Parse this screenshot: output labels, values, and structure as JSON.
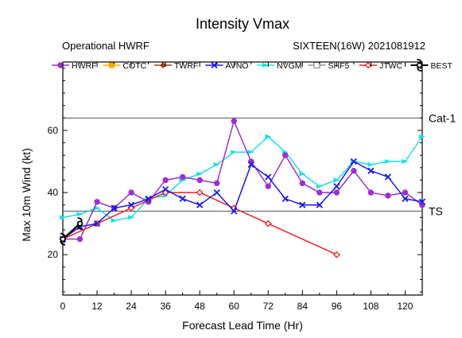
{
  "chart_data": {
    "type": "line",
    "title": "Intensity Vmax",
    "subtitle_left": "Operational HWRF",
    "subtitle_right": "SIXTEEN(16W) 2021081912",
    "xlabel": "Forecast Lead Time (Hr)",
    "ylabel": "Max 10m Wind (kt)",
    "xlim": [
      0,
      126
    ],
    "ylim": [
      7,
      82
    ],
    "xticks": [
      0,
      12,
      24,
      36,
      48,
      60,
      72,
      84,
      96,
      108,
      120
    ],
    "xtick_labels": [
      "0",
      "12",
      "24",
      "36",
      "48",
      "60",
      "72",
      "84",
      "96",
      "108",
      "120"
    ],
    "yticks": [
      20,
      40,
      60
    ],
    "ytick_labels": [
      "20",
      "40",
      "60"
    ],
    "thresholds": [
      {
        "label": "Cat-1",
        "value": 64
      },
      {
        "label": "TS",
        "value": 34
      }
    ],
    "legend_position": "top",
    "series": [
      {
        "name": "HWRF",
        "color": "#9b30d0",
        "marker": "circle",
        "x": [
          0,
          6,
          12,
          18,
          24,
          30,
          36,
          42,
          48,
          54,
          60,
          66,
          72,
          78,
          84,
          90,
          96,
          102,
          108,
          114,
          120,
          126
        ],
        "y": [
          25,
          25,
          37,
          35,
          40,
          37,
          44,
          45,
          44,
          43,
          63,
          50,
          42,
          52,
          43,
          40,
          40,
          47,
          40,
          39,
          40,
          36
        ]
      },
      {
        "name": "COTC",
        "color": "#ffa500",
        "marker": "square",
        "x": [],
        "y": []
      },
      {
        "name": "TWRF",
        "color": "#8b4513",
        "marker": "diamond",
        "x": [],
        "y": []
      },
      {
        "name": "AVNO",
        "color": "#1a1ae6",
        "marker": "x",
        "x": [
          0,
          6,
          12,
          18,
          24,
          30,
          36,
          42,
          48,
          54,
          60,
          66,
          72,
          78,
          84,
          90,
          96,
          102,
          108,
          114,
          120,
          126
        ],
        "y": [
          25,
          29,
          30,
          35,
          36,
          38,
          41,
          38,
          36,
          40,
          34,
          49,
          45,
          38,
          36,
          36,
          42,
          50,
          47,
          45,
          38,
          37
        ]
      },
      {
        "name": "NVGM",
        "color": "#1de0e0",
        "marker": "triangle",
        "x": [
          0,
          6,
          12,
          18,
          24,
          30,
          36,
          42,
          48,
          54,
          60,
          66,
          72,
          78,
          84,
          90,
          96,
          102,
          108,
          114,
          120,
          126
        ],
        "y": [
          32,
          33,
          35,
          31,
          32,
          38,
          39,
          44,
          46,
          49,
          53,
          53,
          58,
          53,
          46,
          42,
          44,
          50,
          49,
          50,
          50,
          58
        ]
      },
      {
        "name": "SHF5",
        "color": "#909090",
        "marker": "square-open",
        "x": [],
        "y": []
      },
      {
        "name": "JTWC",
        "color": "#ee2020",
        "marker": "diamond-open",
        "x": [
          0,
          12,
          24,
          36,
          48,
          60,
          72,
          96
        ],
        "y": [
          25,
          30,
          35,
          40,
          40,
          35,
          30,
          20
        ]
      },
      {
        "name": "BEST",
        "color": "#000000",
        "marker": "hurricane",
        "x": [
          0,
          6
        ],
        "y": [
          25,
          30
        ]
      }
    ]
  }
}
